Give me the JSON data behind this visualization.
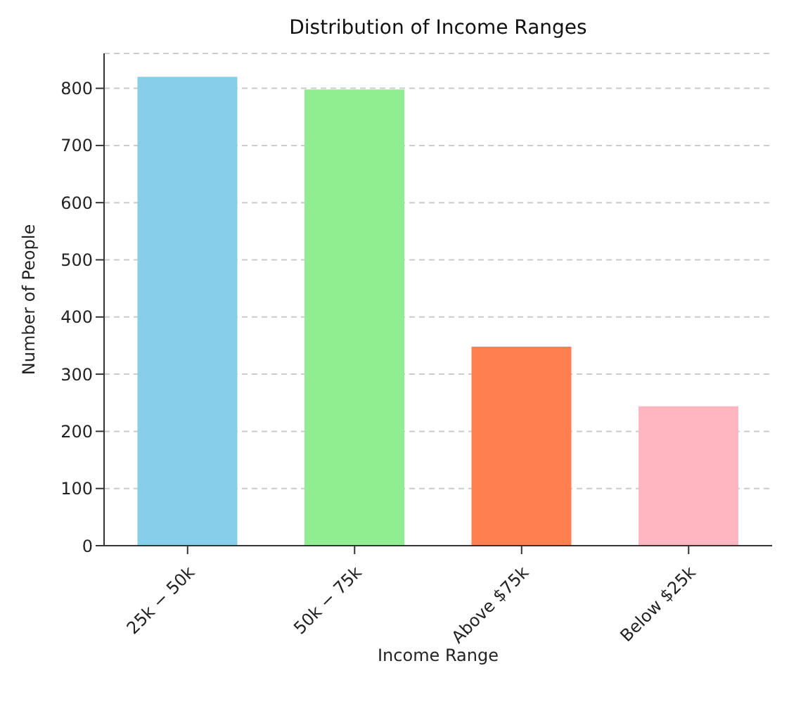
{
  "chart_data": {
    "type": "bar",
    "title": "Distribution of Income Ranges",
    "xlabel": "Income Range",
    "ylabel": "Number of People",
    "categories": [
      "25k − 50k",
      "50k − 75k",
      "Above $75k",
      "Below $25k"
    ],
    "values": [
      820,
      798,
      348,
      244
    ],
    "colors": [
      "#87ceeb",
      "#90ee90",
      "#ff7f50",
      "#ffb6c1"
    ],
    "ylim": [
      0,
      861
    ],
    "yticks": [
      0,
      100,
      200,
      300,
      400,
      500,
      600,
      700,
      800
    ],
    "grid": "y"
  }
}
